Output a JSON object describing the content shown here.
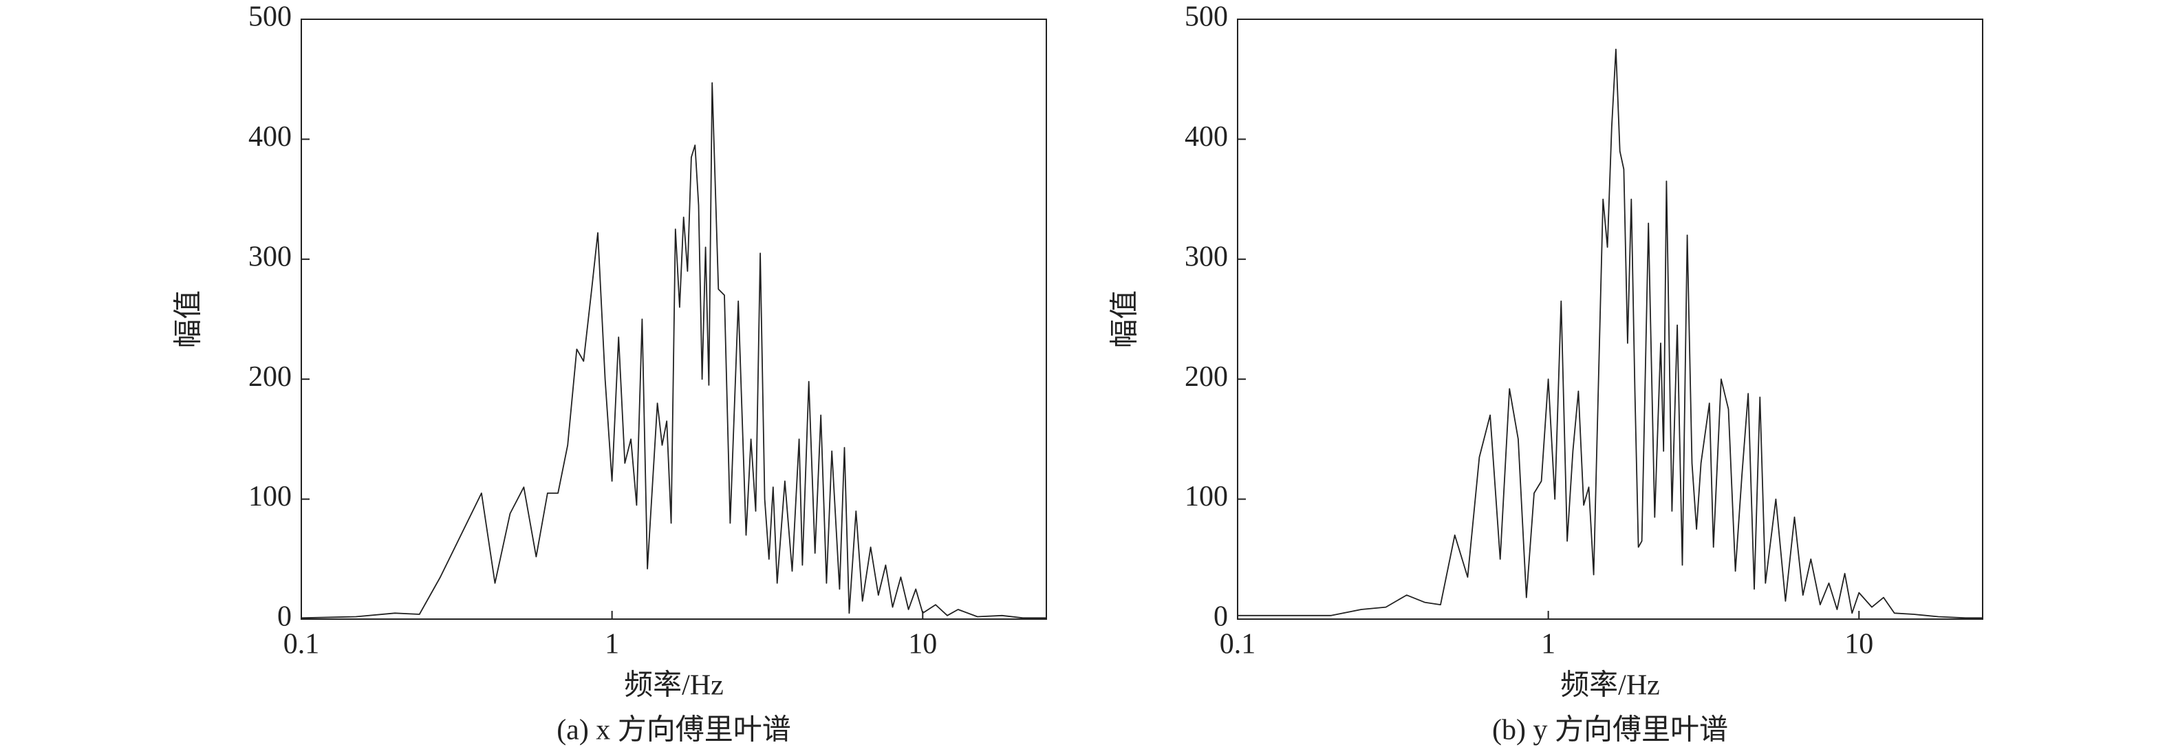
{
  "chart_data": [
    {
      "type": "line",
      "title": "(a) x 方向傅里叶谱",
      "x_label": "频率/Hz",
      "y_label": "幅值",
      "log_x": true,
      "xlim": [
        0.1,
        25
      ],
      "ylim": [
        0,
        500
      ],
      "xticks": [
        0.1,
        1,
        10
      ],
      "yticks": [
        0,
        100,
        200,
        300,
        400,
        500
      ],
      "color": "#222222",
      "x": [
        0.1,
        0.15,
        0.2,
        0.24,
        0.28,
        0.38,
        0.42,
        0.47,
        0.52,
        0.57,
        0.62,
        0.67,
        0.72,
        0.77,
        0.81,
        0.86,
        0.9,
        0.95,
        1.0,
        1.05,
        1.1,
        1.15,
        1.2,
        1.25,
        1.3,
        1.4,
        1.45,
        1.5,
        1.55,
        1.6,
        1.65,
        1.7,
        1.75,
        1.8,
        1.85,
        1.9,
        1.95,
        2.0,
        2.05,
        2.1,
        2.2,
        2.3,
        2.4,
        2.55,
        2.7,
        2.8,
        2.9,
        3.0,
        3.1,
        3.2,
        3.3,
        3.4,
        3.6,
        3.8,
        4.0,
        4.1,
        4.3,
        4.5,
        4.7,
        4.9,
        5.1,
        5.4,
        5.6,
        5.8,
        6.1,
        6.4,
        6.8,
        7.2,
        7.6,
        8.0,
        8.5,
        9.0,
        9.5,
        10,
        11,
        12,
        13,
        15,
        18,
        21,
        25
      ],
      "values": [
        1,
        2,
        5,
        4,
        35,
        105,
        30,
        88,
        110,
        52,
        105,
        105,
        145,
        225,
        215,
        275,
        322,
        200,
        115,
        235,
        130,
        150,
        95,
        250,
        42,
        180,
        145,
        165,
        80,
        325,
        260,
        335,
        290,
        385,
        395,
        345,
        200,
        310,
        195,
        447,
        275,
        270,
        80,
        265,
        70,
        150,
        90,
        305,
        100,
        50,
        110,
        30,
        115,
        40,
        150,
        45,
        198,
        55,
        170,
        30,
        140,
        25,
        143,
        5,
        90,
        15,
        60,
        20,
        45,
        10,
        35,
        8,
        25,
        5,
        12,
        3,
        8,
        2,
        3,
        1,
        1
      ]
    },
    {
      "type": "line",
      "title": "(b) y 方向傅里叶谱",
      "x_label": "频率/Hz",
      "y_label": "幅值",
      "log_x": true,
      "xlim": [
        0.1,
        25
      ],
      "ylim": [
        0,
        500
      ],
      "xticks": [
        0.1,
        1,
        10
      ],
      "yticks": [
        0,
        100,
        200,
        300,
        400,
        500
      ],
      "color": "#222222",
      "x": [
        0.1,
        0.2,
        0.25,
        0.3,
        0.35,
        0.4,
        0.45,
        0.5,
        0.55,
        0.6,
        0.65,
        0.7,
        0.75,
        0.8,
        0.85,
        0.9,
        0.95,
        1.0,
        1.05,
        1.1,
        1.15,
        1.2,
        1.25,
        1.3,
        1.35,
        1.4,
        1.5,
        1.55,
        1.6,
        1.65,
        1.7,
        1.75,
        1.8,
        1.85,
        1.9,
        1.95,
        2.0,
        2.1,
        2.2,
        2.3,
        2.35,
        2.4,
        2.5,
        2.6,
        2.7,
        2.8,
        2.9,
        3.0,
        3.1,
        3.3,
        3.4,
        3.6,
        3.8,
        4.0,
        4.2,
        4.4,
        4.6,
        4.8,
        5.0,
        5.4,
        5.8,
        6.2,
        6.6,
        7.0,
        7.5,
        8.0,
        8.5,
        9.0,
        9.5,
        10,
        11,
        12,
        13,
        15,
        18,
        22,
        25
      ],
      "values": [
        3,
        3,
        8,
        10,
        20,
        14,
        12,
        70,
        35,
        135,
        170,
        50,
        192,
        150,
        18,
        105,
        115,
        200,
        100,
        265,
        65,
        140,
        190,
        95,
        110,
        37,
        350,
        310,
        410,
        475,
        390,
        375,
        230,
        350,
        190,
        60,
        65,
        330,
        85,
        230,
        140,
        365,
        90,
        245,
        45,
        320,
        130,
        75,
        130,
        180,
        60,
        200,
        175,
        40,
        120,
        188,
        25,
        185,
        30,
        100,
        15,
        85,
        20,
        50,
        12,
        30,
        8,
        38,
        5,
        22,
        10,
        18,
        5,
        4,
        2,
        1,
        1
      ]
    }
  ]
}
